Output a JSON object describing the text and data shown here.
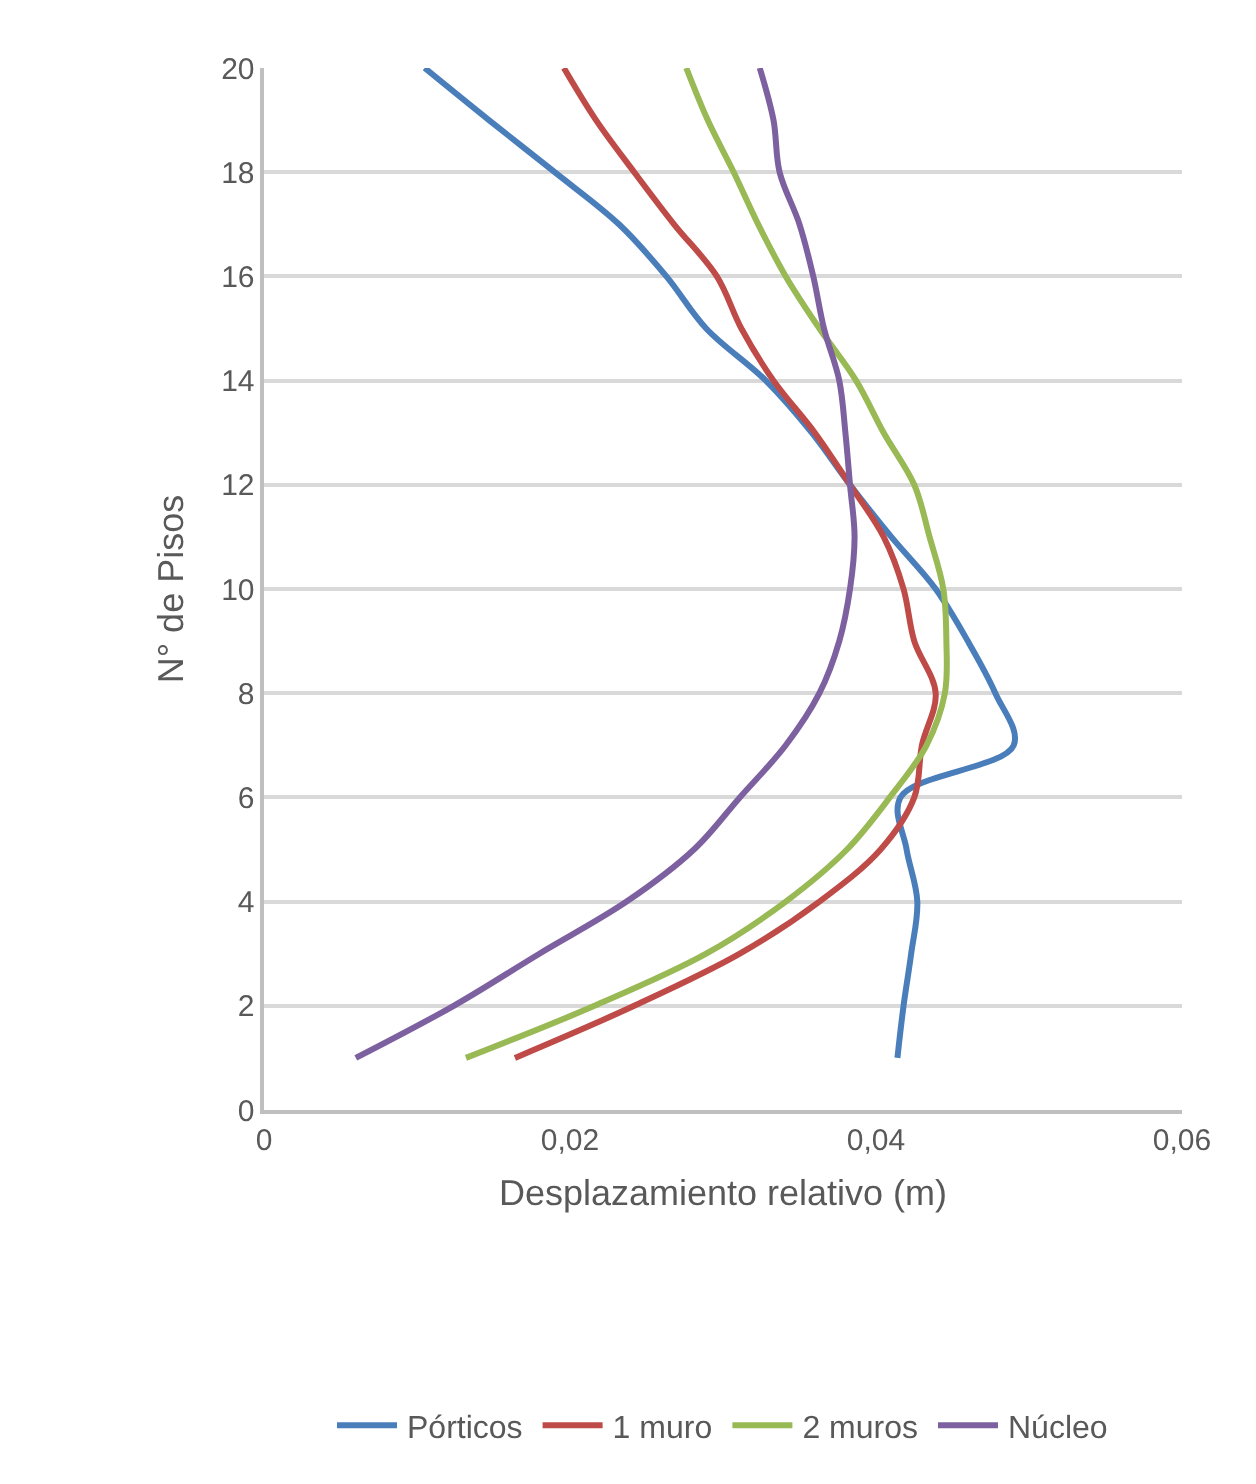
{
  "chart_data": {
    "type": "line",
    "xlabel": "Desplazamiento relativo (m)",
    "ylabel": "N° de Pisos",
    "xlim": [
      0,
      0.06
    ],
    "xticks": [
      {
        "value": 0,
        "label": "0"
      },
      {
        "value": 0.02,
        "label": "0,02"
      },
      {
        "value": 0.04,
        "label": "0,04"
      },
      {
        "value": 0.06,
        "label": "0,06"
      }
    ],
    "ylim": [
      0,
      20
    ],
    "yticks": [
      0,
      2,
      4,
      6,
      8,
      10,
      12,
      14,
      16,
      18,
      20
    ],
    "grid": "y",
    "legend": "bottom",
    "marker": "none",
    "line_style": "solid",
    "series": [
      {
        "name": "Pórticos",
        "color": "#4a7ebb",
        "x": [
          0.0414,
          0.0418,
          0.0423,
          0.0427,
          0.042,
          0.0416,
          0.049,
          0.0478,
          0.046,
          0.0439,
          0.041,
          0.0383,
          0.0358,
          0.0328,
          0.0289,
          0.0263,
          0.0232,
          0.019,
          0.0147,
          0.0105
        ],
        "values": [
          1,
          2,
          3,
          4,
          5,
          6,
          7,
          8,
          9,
          10,
          11,
          12,
          13,
          14,
          15,
          16,
          17,
          18,
          19,
          20
        ]
      },
      {
        "name": "1 muro",
        "color": "#be4b48",
        "x": [
          0.0164,
          0.0242,
          0.0311,
          0.0363,
          0.0403,
          0.0425,
          0.043,
          0.0439,
          0.0425,
          0.0418,
          0.0405,
          0.0383,
          0.036,
          0.0333,
          0.0312,
          0.0296,
          0.0268,
          0.0242,
          0.0217,
          0.0196
        ],
        "values": [
          1,
          2,
          3,
          4,
          5,
          6,
          7,
          8,
          9,
          10,
          11,
          12,
          13,
          14,
          15,
          16,
          17,
          18,
          19,
          20
        ]
      },
      {
        "name": "2 muros",
        "color": "#98b954",
        "x": [
          0.0132,
          0.0216,
          0.0289,
          0.0341,
          0.0381,
          0.0409,
          0.0433,
          0.0445,
          0.0446,
          0.0444,
          0.0435,
          0.0425,
          0.0405,
          0.0387,
          0.0363,
          0.0341,
          0.0323,
          0.0307,
          0.029,
          0.0276
        ],
        "values": [
          1,
          2,
          3,
          4,
          5,
          6,
          7,
          8,
          9,
          10,
          11,
          12,
          13,
          14,
          15,
          16,
          17,
          18,
          19,
          20
        ]
      },
      {
        "name": "Núcleo",
        "color": "#7d60a0",
        "x": [
          0.006,
          0.0124,
          0.018,
          0.0237,
          0.0281,
          0.0311,
          0.0341,
          0.0363,
          0.0376,
          0.0383,
          0.0386,
          0.0383,
          0.038,
          0.0376,
          0.0366,
          0.0359,
          0.035,
          0.0337,
          0.0333,
          0.0324
        ],
        "values": [
          1,
          2,
          3,
          4,
          5,
          6,
          7,
          8,
          9,
          10,
          11,
          12,
          13,
          14,
          15,
          16,
          17,
          18,
          19,
          20
        ]
      }
    ]
  }
}
